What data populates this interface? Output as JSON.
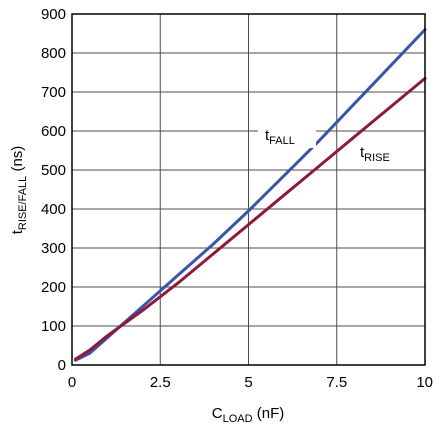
{
  "chart_data": {
    "type": "line",
    "title": "",
    "xlabel": {
      "main": "C",
      "sub": "LOAD",
      "suffix": " (nF)"
    },
    "ylabel": {
      "main": "t",
      "sub": "RISE/FALL",
      "suffix": " (ns)"
    },
    "xlim": [
      0,
      10
    ],
    "ylim": [
      0,
      900
    ],
    "xticks": [
      0,
      2.5,
      5,
      7.5,
      10
    ],
    "xtick_labels": [
      "0",
      "2.5",
      "5",
      "7.5",
      "10"
    ],
    "yticks": [
      0,
      100,
      200,
      300,
      400,
      500,
      600,
      700,
      800,
      900
    ],
    "ytick_labels": [
      "0",
      "100",
      "200",
      "300",
      "400",
      "500",
      "600",
      "700",
      "800",
      "900"
    ],
    "grid": true,
    "series": [
      {
        "name": {
          "main": "t",
          "sub": "FALL"
        },
        "color": "#3a55a5",
        "x": [
          0.1,
          0.5,
          1,
          2,
          3,
          4,
          5,
          6,
          7,
          8,
          9,
          10
        ],
        "y": [
          12,
          30,
          70,
          150,
          230,
          310,
          395,
          485,
          575,
          670,
          765,
          860
        ]
      },
      {
        "name": {
          "main": "t",
          "sub": "RISE"
        },
        "color": "#8b1a3b",
        "x": [
          0.1,
          0.5,
          1,
          2,
          3,
          4,
          5,
          6,
          7,
          8,
          9,
          10
        ],
        "y": [
          15,
          38,
          75,
          140,
          210,
          285,
          360,
          435,
          510,
          585,
          660,
          735
        ]
      }
    ]
  }
}
